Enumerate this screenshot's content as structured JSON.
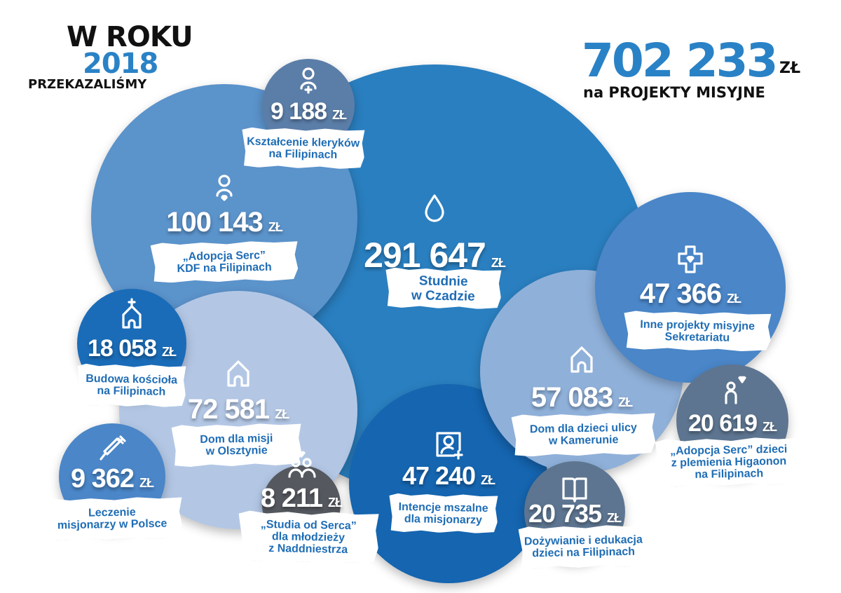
{
  "header": {
    "line1": "W ROKU",
    "year": "2018",
    "line3": "PRZEKAZALIŚMY"
  },
  "total": {
    "value": "702 233",
    "unit": "ZŁ",
    "subtitle": "na PROJEKTY MISYJNE"
  },
  "chart_data": {
    "type": "bubble",
    "unit": "zł",
    "items": [
      {
        "value": 291647,
        "display": "291 647",
        "label": [
          "Studnie",
          "w Czadzie"
        ],
        "icon": "water-drop-icon",
        "color": "#2a7fc0"
      },
      {
        "value": 100143,
        "display": "100 143",
        "label": [
          "„Adopcja Serc”",
          "KDF na Filipinach"
        ],
        "icon": "person-heart-icon",
        "color": "#5b93cb"
      },
      {
        "value": 9188,
        "display": "9 188",
        "label": [
          "Kształcenie kleryków",
          "na Filipinach"
        ],
        "icon": "person-plus-icon",
        "color": "#5b7ea8"
      },
      {
        "value": 72581,
        "display": "72 581",
        "label": [
          "Dom dla misji",
          "w Olsztynie"
        ],
        "icon": "house-icon",
        "color": "#b3c7e5"
      },
      {
        "value": 18058,
        "display": "18 058",
        "label": [
          "Budowa kościoła",
          "na Filipinach"
        ],
        "icon": "church-icon",
        "color": "#1a6cb8"
      },
      {
        "value": 9362,
        "display": "9 362",
        "label": [
          "Leczenie",
          "misjonarzy w Polsce"
        ],
        "icon": "syringe-icon",
        "color": "#4a86c8"
      },
      {
        "value": 47240,
        "display": "47 240",
        "label": [
          "Intencje mszalne",
          "dla misjonarzy"
        ],
        "icon": "portrait-plus-icon",
        "color": "#1565b0"
      },
      {
        "value": 57083,
        "display": "57 083",
        "label": [
          "Dom dla dzieci ulicy",
          "w Kamerunie"
        ],
        "icon": "house-icon",
        "color": "#8fb0d9"
      },
      {
        "value": 47366,
        "display": "47 366",
        "label": [
          "Inne projekty misyjne",
          "Sekretariatu"
        ],
        "icon": "cross-heart-icon",
        "color": "#4a86c8"
      },
      {
        "value": 20619,
        "display": "20 619",
        "label": [
          "„Adopcja Serc” dzieci",
          "z plemienia Higaonon",
          "na Filipinach"
        ],
        "icon": "child-heart-icon",
        "color": "#5d7590"
      },
      {
        "value": 8211,
        "display": "8 211",
        "label": [
          "„Studia od Serca”",
          "dla młodzieży",
          "z Naddniestrza"
        ],
        "icon": "people-heart-icon",
        "color": "#55595f"
      },
      {
        "value": 20735,
        "display": "20 735",
        "label": [
          "Dożywianie i edukacja",
          "dzieci na Filipinach"
        ],
        "icon": "book-icon",
        "color": "#5d7590"
      }
    ]
  }
}
